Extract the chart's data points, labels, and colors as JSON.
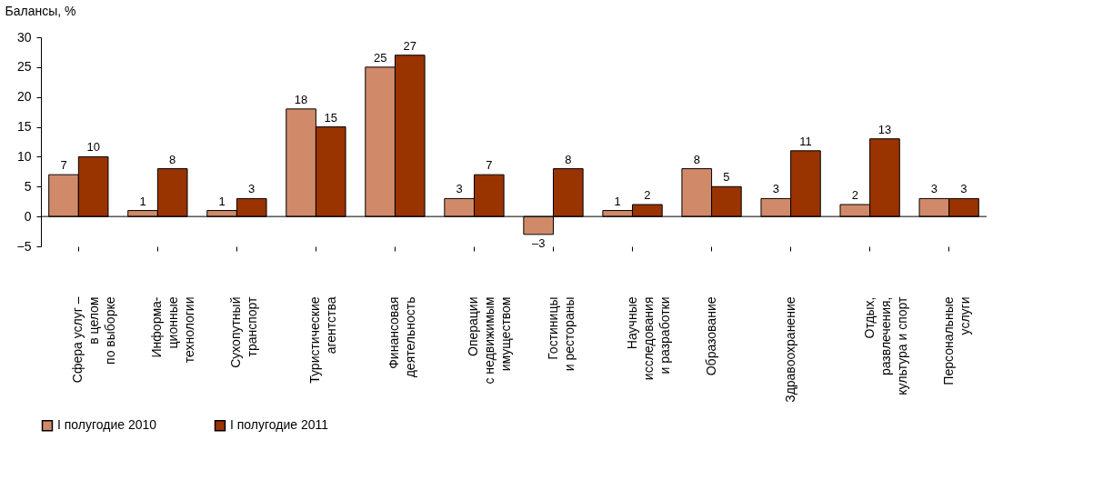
{
  "chart_data": {
    "type": "bar",
    "ylabel": "Балансы, %",
    "categories": [
      "Сфера услуг –\nв целом\nпо выборке",
      "Информа-\nционные\nтехнологии",
      "Сухопутный\nтранспорт",
      "Туристические\nагентства",
      "Финансовая\nдеятельность",
      "Операции\nс недвижимым\nимуществом",
      "Гостиницы\nи рестораны",
      "Научные\nисследования\nи разработки",
      "Образование",
      "Здравоохранение",
      "Отдых,\nразвлечения,\nкультура и спорт",
      "Персональные\nуслуги"
    ],
    "series": [
      {
        "name": "I полугодие 2010",
        "color": "#d08a6a",
        "values": [
          7,
          1,
          1,
          18,
          25,
          3,
          -3,
          1,
          8,
          3,
          2,
          3
        ],
        "value_labels": [
          "7",
          "1",
          "1",
          "18",
          "25",
          "3",
          "–3",
          "1",
          "8",
          "3",
          "2",
          "3"
        ]
      },
      {
        "name": "I полугодие 2011",
        "color": "#993300",
        "values": [
          10,
          8,
          3,
          15,
          27,
          7,
          8,
          2,
          5,
          11,
          13,
          3
        ],
        "value_labels": [
          "10",
          "8",
          "3",
          "15",
          "27",
          "7",
          "8",
          "2",
          "5",
          "11",
          "13",
          "3"
        ]
      }
    ],
    "ylim": [
      -5,
      30
    ],
    "yticks": [
      -5,
      0,
      5,
      10,
      15,
      20,
      25,
      30
    ],
    "ref_lines": [
      {
        "axis": "y",
        "value": 0
      }
    ],
    "grid": false,
    "legend": "bottom"
  }
}
